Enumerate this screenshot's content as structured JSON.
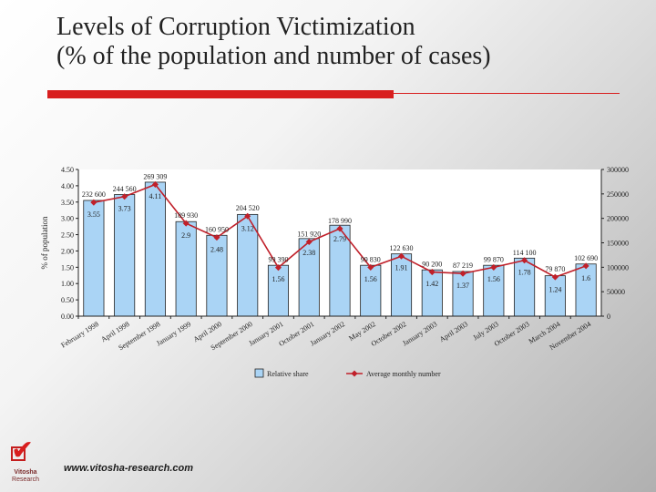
{
  "slide": {
    "title_line1": "Levels of Corruption Victimization",
    "title_line2": "(% of the population and number of cases)",
    "website": "www.vitosha-research.com",
    "logo_line1": "Vitosha",
    "logo_line2": "Research",
    "accent_color": "#d81e1e"
  },
  "chart_data": {
    "type": "bar",
    "categories": [
      "February 1998",
      "April 1998",
      "September 1998",
      "January 1999",
      "April 2000",
      "September 2000",
      "January 2001",
      "October 2001",
      "January 2002",
      "May 2002",
      "October 2002",
      "January 2003",
      "April 2003",
      "July 2003",
      "October 2003",
      "March 2004",
      "November 2004"
    ],
    "series": [
      {
        "name": "Relative share",
        "type": "bar",
        "axis": "left",
        "color": "#aad4f5",
        "values": [
          3.55,
          3.73,
          4.11,
          2.9,
          2.48,
          3.12,
          1.56,
          2.38,
          2.79,
          1.56,
          1.91,
          1.42,
          1.37,
          1.56,
          1.78,
          1.24,
          1.6
        ],
        "labels": [
          "3.55",
          "3.73",
          "4.11",
          "2.9",
          "2.48",
          "3.12",
          "1.56",
          "2.38",
          "2.79",
          "1.56",
          "1.91",
          "1.42",
          "1.37",
          "1.56",
          "1.78",
          "1.24",
          "1.6"
        ]
      },
      {
        "name": "Average monthly number",
        "type": "line",
        "axis": "right",
        "color": "#c0202a",
        "values": [
          232600,
          244560,
          269309,
          189930,
          160950,
          204520,
          99390,
          151920,
          178990,
          99830,
          122630,
          90200,
          87219,
          99870,
          114100,
          79870,
          102690
        ],
        "labels": [
          "232 600",
          "244 560",
          "269 309",
          "189 930",
          "160 950",
          "204 520",
          "99 390",
          "151 920",
          "178 990",
          "99 830",
          "122 630",
          "90 200",
          "87 219",
          "99 870",
          "114 100",
          "79 870",
          "102 690"
        ]
      }
    ],
    "ylabel": "% of population",
    "ylim": [
      0,
      4.5
    ],
    "yticks": [
      "0.00",
      "0.50",
      "1.00",
      "1.50",
      "2.00",
      "2.50",
      "3.00",
      "3.50",
      "4.00",
      "4.50"
    ],
    "y2lim": [
      0,
      300000
    ],
    "y2ticks": [
      "0",
      "50000",
      "100000",
      "150000",
      "200000",
      "250000",
      "300000"
    ],
    "legend_position": "bottom",
    "grid": false
  }
}
